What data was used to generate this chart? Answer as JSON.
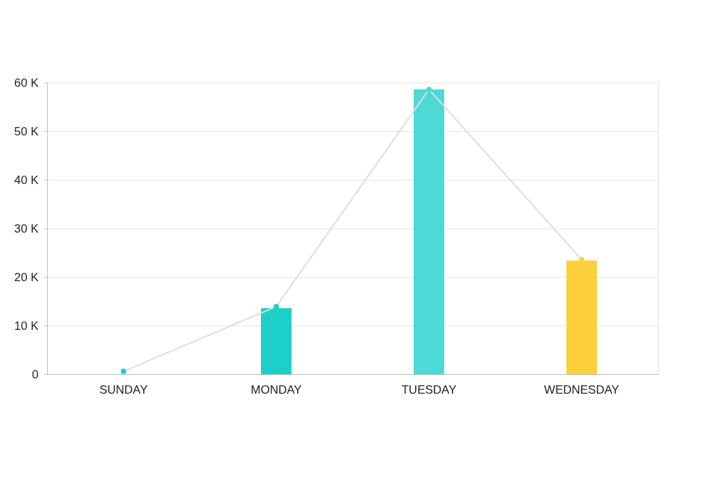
{
  "chart_data": {
    "type": "bar",
    "categories": [
      "SUNDAY",
      "MONDAY",
      "TUESDAY",
      "WEDNESDAY"
    ],
    "series": [
      {
        "values": [
          null,
          13.6,
          58.6,
          23.4
        ],
        "colors": [
          "#1ccfc9",
          "#1ccfc9",
          "#4dd9d6",
          "#fcd03a"
        ]
      },
      {
        "type": "line",
        "color": "#dddddd",
        "values": [
          0.6,
          13.9,
          58.6,
          23.6
        ],
        "colors": [
          "#1ccfc9",
          "#1ccfc9",
          "#4dd9d6",
          "#fcd03a"
        ],
        "marker": "circle"
      }
    ],
    "ylim": [
      0,
      60
    ],
    "yticks": [
      {
        "value": 0,
        "label": "0"
      },
      {
        "value": 10,
        "label": "10 K"
      },
      {
        "value": 20,
        "label": "20 K"
      },
      {
        "value": 30,
        "label": "30 K"
      },
      {
        "value": 40,
        "label": "40 K"
      },
      {
        "value": 50,
        "label": "50 K"
      },
      {
        "value": 60,
        "label": "60 K"
      }
    ],
    "grid": "y"
  }
}
